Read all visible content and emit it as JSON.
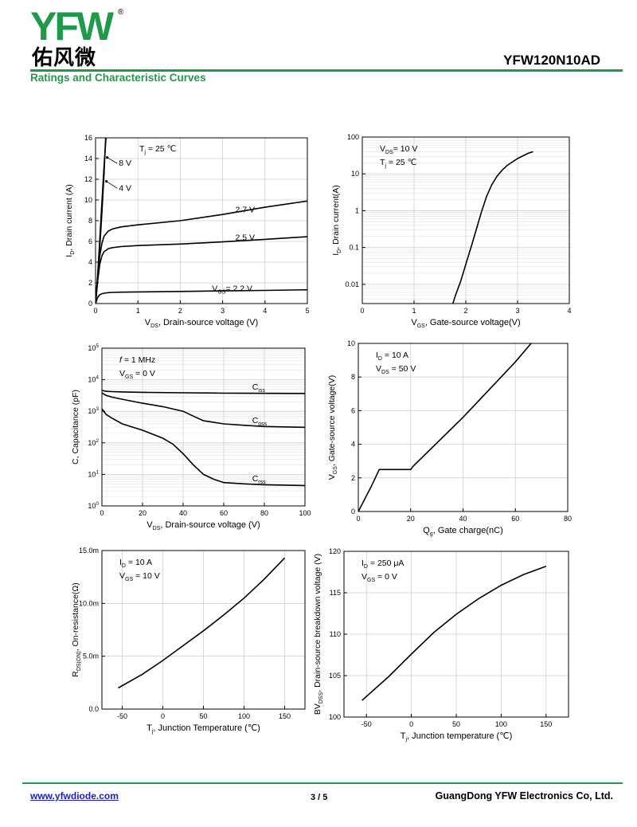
{
  "header": {
    "logo_text": "YFW",
    "logo_registered": "®",
    "logo_cn": "佑风微",
    "part_number": "YFW120N10AD",
    "section_title": "Ratings and Characteristic Curves"
  },
  "footer": {
    "website": "www.yfwdiode.com",
    "page": "3 / 5",
    "company": "GuangDong YFW Electronics Co, Ltd."
  },
  "colors": {
    "accent": "#1f9a4a",
    "link": "#1a1ad6",
    "grid": "#cfcfcf",
    "curve": "#000000"
  },
  "chart_data": [
    {
      "id": "output",
      "type": "line",
      "xlabel_main": "V",
      "xlabel_sub": "DS",
      "xlabel_rest": ", Drain-source voltage (V)",
      "ylabel_main": "I",
      "ylabel_sub": "D",
      "ylabel_rest": ", Drain current (A)",
      "xlim": [
        0,
        5
      ],
      "ylim": [
        0,
        16
      ],
      "xticks": [
        0,
        1,
        2,
        3,
        4,
        5
      ],
      "yticks": [
        0,
        2,
        4,
        6,
        8,
        10,
        12,
        14,
        16
      ],
      "grid": true,
      "annotation": {
        "main": "T",
        "sub": "j",
        "rest": " = 25 ℃"
      },
      "series": [
        {
          "name": "8 V",
          "x": [
            0,
            0.05,
            0.1,
            0.15,
            0.2,
            0.25
          ],
          "y": [
            0,
            2.8,
            6.2,
            9.8,
            13.2,
            16.2
          ]
        },
        {
          "name": "4 V",
          "x": [
            0,
            0.05,
            0.1,
            0.15,
            0.2,
            0.24
          ],
          "y": [
            0,
            2.4,
            5.4,
            8.8,
            12.4,
            16.2
          ]
        },
        {
          "name": "2.7 V",
          "x": [
            0,
            0.05,
            0.1,
            0.15,
            0.2,
            0.3,
            0.4,
            0.6,
            1,
            2,
            3,
            4,
            5
          ],
          "y": [
            0,
            2.6,
            4.6,
            5.8,
            6.5,
            7.0,
            7.2,
            7.4,
            7.6,
            8.0,
            8.6,
            9.3,
            9.9
          ]
        },
        {
          "name": "2.5 V",
          "x": [
            0,
            0.05,
            0.1,
            0.15,
            0.2,
            0.3,
            0.4,
            0.6,
            1,
            2,
            3,
            4,
            5
          ],
          "y": [
            0,
            2.2,
            3.8,
            4.6,
            5.0,
            5.3,
            5.4,
            5.5,
            5.6,
            5.75,
            5.95,
            6.2,
            6.45
          ]
        },
        {
          "name": "2.2 V",
          "x": [
            0,
            0.05,
            0.1,
            0.15,
            0.2,
            0.3,
            0.4,
            0.6,
            1,
            2,
            3,
            4,
            5
          ],
          "y": [
            0,
            0.6,
            0.85,
            0.95,
            1.0,
            1.05,
            1.08,
            1.1,
            1.12,
            1.17,
            1.22,
            1.27,
            1.33
          ]
        }
      ],
      "labels": [
        {
          "series": "8 V",
          "text": "8 V",
          "x": 0.55,
          "y": 13.3,
          "ax": 0.22,
          "ay": 14.1
        },
        {
          "series": "4 V",
          "text": "4 V",
          "x": 0.55,
          "y": 10.9,
          "ax": 0.2,
          "ay": 11.8
        },
        {
          "series": "2.7 V",
          "text": "2.7 V",
          "x": 3.3,
          "y": 8.8
        },
        {
          "series": "2.5 V",
          "text": "2.5 V",
          "x": 3.3,
          "y": 6.1
        },
        {
          "series": "2.2 V",
          "text_main": "V",
          "text_sub": "GS",
          "text_rest": "= 2.2 V",
          "x": 2.75,
          "y": 1.2
        }
      ]
    },
    {
      "id": "transfer",
      "type": "line",
      "yscale": "log",
      "xlabel_main": "V",
      "xlabel_sub": "GS",
      "xlabel_rest": ", Gate-source voltage(V)",
      "ylabel_main": "I",
      "ylabel_sub": "D",
      "ylabel_rest": ", Drain current(A)",
      "xlim": [
        0,
        4
      ],
      "ylim": [
        0.003,
        100
      ],
      "xticks": [
        0,
        1,
        2,
        3,
        4
      ],
      "yticks": [
        0.01,
        0.1,
        1,
        10,
        100
      ],
      "ytick_labels": [
        "0.01",
        "0.1",
        "1",
        "10",
        "100"
      ],
      "grid": true,
      "annotation_lines": [
        {
          "main": "V",
          "sub": "DS",
          "rest": "= 10 V"
        },
        {
          "main": "T",
          "sub": "j",
          "rest": " = 25 ℃"
        }
      ],
      "series": [
        {
          "name": "ID",
          "x": [
            1.75,
            1.8,
            1.9,
            2.0,
            2.1,
            2.2,
            2.3,
            2.4,
            2.5,
            2.6,
            2.7,
            2.8,
            3.0,
            3.2,
            3.3
          ],
          "y": [
            0.003,
            0.005,
            0.012,
            0.035,
            0.1,
            0.3,
            0.9,
            2.4,
            5,
            8.5,
            12.5,
            17,
            26,
            36,
            40
          ]
        }
      ]
    },
    {
      "id": "capacitance",
      "type": "line",
      "yscale": "log",
      "xlabel_main": "V",
      "xlabel_sub": "DS",
      "xlabel_rest": ", Drain-source voltage (V)",
      "ylabel": "C, Capacitance (pF)",
      "xlim": [
        0,
        100
      ],
      "ylim": [
        1,
        100000
      ],
      "xticks": [
        0,
        20,
        40,
        60,
        80,
        100
      ],
      "yticks": [
        1,
        10,
        100,
        1000,
        10000,
        100000
      ],
      "ytick_labels": [
        "10^0",
        "10^1",
        "10^2",
        "10^3",
        "10^4",
        "10^5"
      ],
      "grid": true,
      "annotation_lines": [
        {
          "main": "f",
          "sub": "",
          "rest": " = 1 MHz"
        },
        {
          "main": "V",
          "sub": "GS",
          "rest": " = 0 V"
        }
      ],
      "series": [
        {
          "name": "Ciss",
          "x": [
            0,
            2,
            5,
            10,
            20,
            40,
            60,
            80,
            100
          ],
          "y": [
            4600,
            4300,
            4200,
            4100,
            4000,
            3850,
            3750,
            3700,
            3650
          ]
        },
        {
          "name": "Coss",
          "x": [
            0,
            2,
            5,
            10,
            20,
            30,
            40,
            45,
            50,
            60,
            70,
            80,
            100
          ],
          "y": [
            3800,
            3200,
            2800,
            2400,
            1800,
            1400,
            1000,
            700,
            500,
            400,
            360,
            330,
            310
          ]
        },
        {
          "name": "Crss",
          "x": [
            0,
            2,
            5,
            10,
            20,
            30,
            35,
            40,
            45,
            50,
            55,
            60,
            70,
            80,
            100
          ],
          "y": [
            1200,
            800,
            600,
            400,
            250,
            140,
            90,
            45,
            20,
            10,
            7,
            5.5,
            5,
            4.7,
            4.4
          ]
        }
      ],
      "labels": [
        {
          "main": "C",
          "sub": "iss",
          "x": 74,
          "y": 4800
        },
        {
          "main": "C",
          "sub": "oss",
          "x": 74,
          "y": 420
        },
        {
          "main": "C",
          "sub": "rss",
          "x": 74,
          "y": 6
        }
      ]
    },
    {
      "id": "gate_charge",
      "type": "line",
      "xlabel_main": "Q",
      "xlabel_sub": "g",
      "xlabel_rest": ", Gate charge(nC)",
      "ylabel_main": "V",
      "ylabel_sub": "GS",
      "ylabel_rest": ", Gate-source voltage(V)",
      "xlim": [
        0,
        80
      ],
      "ylim": [
        0,
        10
      ],
      "xticks": [
        0,
        20,
        40,
        60,
        80
      ],
      "yticks": [
        0,
        2,
        4,
        6,
        8,
        10
      ],
      "grid": true,
      "annotation_lines": [
        {
          "main": "I",
          "sub": "D",
          "rest": " = 10 A"
        },
        {
          "main": "V",
          "sub": "DS",
          "rest": " = 50 V"
        }
      ],
      "series": [
        {
          "name": "VGS",
          "x": [
            0,
            2,
            5,
            8,
            20,
            21,
            40,
            60,
            66
          ],
          "y": [
            0,
            0.6,
            1.5,
            2.5,
            2.5,
            2.7,
            5.6,
            8.9,
            10
          ]
        }
      ]
    },
    {
      "id": "rdson",
      "type": "line",
      "xlabel_main": "T",
      "xlabel_sub": "j",
      "xlabel_rest": ", Junction Temperature (℃)",
      "ylabel_main": "R",
      "ylabel_sub": "DS(ON)",
      "ylabel_rest": ", On-resistance(Ω)",
      "xlim": [
        -75,
        175
      ],
      "ylim": [
        0,
        15
      ],
      "xticks": [
        -50,
        0,
        50,
        100,
        150
      ],
      "yticks": [
        0,
        5,
        10,
        15
      ],
      "ytick_labels": [
        "0.0",
        "5.0m",
        "10.0m",
        "15.0m"
      ],
      "grid": true,
      "annotation_lines": [
        {
          "main": "I",
          "sub": "D",
          "rest": " = 10 A"
        },
        {
          "main": "V",
          "sub": "GS",
          "rest": " = 10 V"
        }
      ],
      "series": [
        {
          "name": "RDS(ON)",
          "x": [
            -55,
            -25,
            0,
            25,
            50,
            75,
            100,
            125,
            150
          ],
          "y": [
            2.0,
            3.3,
            4.6,
            6.0,
            7.4,
            8.9,
            10.5,
            12.3,
            14.3
          ]
        }
      ]
    },
    {
      "id": "bvdss",
      "type": "line",
      "xlabel_main": "T",
      "xlabel_sub": "j",
      "xlabel_rest": ", Junction temperature (℃)",
      "ylabel_main": "BV",
      "ylabel_sub": "DSS",
      "ylabel_rest": ", Drain-source breakdown voltage (V)",
      "xlim": [
        -75,
        175
      ],
      "ylim": [
        100,
        120
      ],
      "xticks": [
        -50,
        0,
        50,
        100,
        150
      ],
      "yticks": [
        100,
        105,
        110,
        115,
        120
      ],
      "grid": true,
      "annotation_lines": [
        {
          "main": "I",
          "sub": "D",
          "rest": " = 250 μA"
        },
        {
          "main": "V",
          "sub": "GS",
          "rest": " = 0 V"
        }
      ],
      "series": [
        {
          "name": "BVDSS",
          "x": [
            -55,
            -25,
            0,
            25,
            50,
            75,
            100,
            125,
            150
          ],
          "y": [
            102.0,
            104.9,
            107.6,
            110.2,
            112.4,
            114.3,
            115.9,
            117.2,
            118.2
          ]
        }
      ]
    }
  ]
}
